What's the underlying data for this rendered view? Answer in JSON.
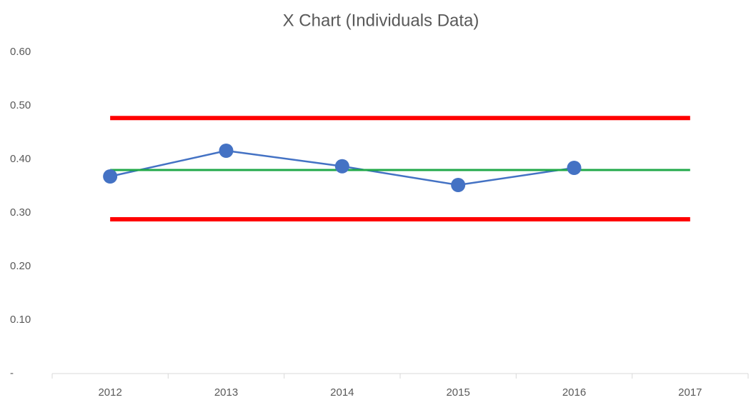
{
  "chart_data": {
    "type": "line",
    "title": "X Chart (Individuals Data)",
    "categories": [
      "2012",
      "2013",
      "2014",
      "2015",
      "2016",
      "2017"
    ],
    "series": [
      {
        "color": "#ff0000",
        "width": 6,
        "markers": false,
        "values": [
          0.477,
          0.477,
          0.477,
          0.477,
          0.477,
          0.477
        ]
      },
      {
        "color": "#ff0000",
        "width": 6,
        "markers": false,
        "values": [
          0.288,
          0.288,
          0.288,
          0.288,
          0.288,
          0.288
        ]
      },
      {
        "color": "#4472c4",
        "width": 2.5,
        "markers": true,
        "values": [
          0.368,
          0.416,
          0.387,
          0.352,
          0.384,
          null
        ]
      },
      {
        "color": "#21a94a",
        "width": 3,
        "markers": false,
        "values": [
          0.38,
          0.38,
          0.38,
          0.38,
          0.38,
          0.38
        ]
      }
    ],
    "ylim": [
      0,
      0.6
    ],
    "yticks": [
      {
        "value": 0,
        "label": "-"
      },
      {
        "value": 0.1,
        "label": "0.10"
      },
      {
        "value": 0.2,
        "label": "0.20"
      },
      {
        "value": 0.3,
        "label": "0.30"
      },
      {
        "value": 0.4,
        "label": "0.40"
      },
      {
        "value": 0.5,
        "label": "0.50"
      },
      {
        "value": 0.6,
        "label": "0.60"
      }
    ],
    "grid": false
  }
}
